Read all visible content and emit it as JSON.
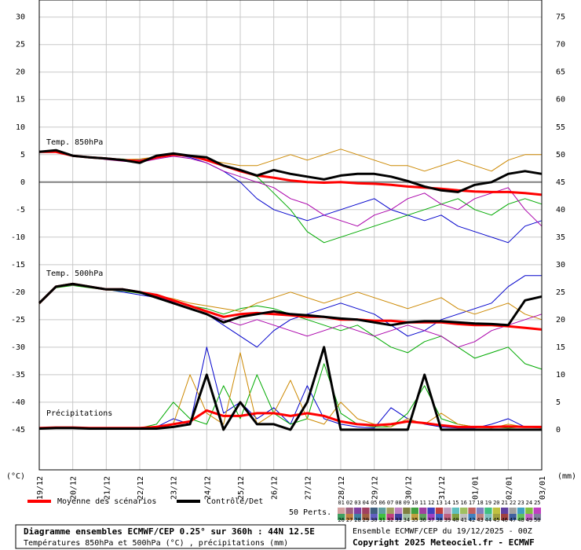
{
  "chart_data": {
    "type": "line",
    "categories": [
      "19/12",
      null,
      "20/12",
      null,
      "21/12",
      null,
      "22/12",
      null,
      "23/12",
      null,
      "24/12",
      null,
      "25/12",
      null,
      "26/12",
      null,
      "27/12",
      null,
      "28/12",
      null,
      "29/12",
      null,
      "30/12",
      null,
      "31/12",
      null,
      "01/01",
      null,
      "02/01",
      null,
      "03/01"
    ],
    "ylim": [
      -52.3,
      33.1
    ],
    "yticks": [
      -45,
      -40,
      -35,
      -30,
      -25,
      -20,
      -15,
      -10,
      -5,
      0,
      5,
      10,
      15,
      20,
      25,
      30
    ],
    "y2lim": [
      -7.3,
      78.1
    ],
    "y2ticks": [
      0,
      5,
      10,
      15,
      20,
      25,
      30,
      35,
      40,
      45,
      50,
      55,
      60,
      65,
      70,
      75
    ],
    "ylabel": "(°C)",
    "y2label": "(mm)",
    "grid": true,
    "annotations": [
      "Temp. 850hPa",
      "Temp. 500hPa",
      "Précipitations"
    ],
    "legend": [
      {
        "label": "Moyenne des scénarios",
        "color": "#ff0000"
      },
      {
        "label": "Contrôle/Det",
        "color": "#000000"
      }
    ],
    "members_label": "50 Perts.",
    "members": [
      {
        "label": "01",
        "color": "#d4a0a0"
      },
      {
        "label": "02",
        "color": "#a06080"
      },
      {
        "label": "03",
        "color": "#8040a0"
      },
      {
        "label": "04",
        "color": "#a04060"
      },
      {
        "label": "05",
        "color": "#406080"
      },
      {
        "label": "06",
        "color": "#60a0a0"
      },
      {
        "label": "07",
        "color": "#a0a060"
      },
      {
        "label": "08",
        "color": "#c080c0"
      },
      {
        "label": "09",
        "color": "#808040"
      },
      {
        "label": "10",
        "color": "#40a040"
      },
      {
        "label": "11",
        "color": "#a040a0"
      },
      {
        "label": "12",
        "color": "#4040c0"
      },
      {
        "label": "13",
        "color": "#c04040"
      },
      {
        "label": "14",
        "color": "#c0a0c0"
      },
      {
        "label": "15",
        "color": "#60c0c0"
      },
      {
        "label": "16",
        "color": "#a0c060"
      },
      {
        "label": "17",
        "color": "#c06060"
      },
      {
        "label": "18",
        "color": "#8080c0"
      },
      {
        "label": "19",
        "color": "#40c080"
      },
      {
        "label": "20",
        "color": "#c0c040"
      },
      {
        "label": "21",
        "color": "#6040a0"
      },
      {
        "label": "22",
        "color": "#a0a0a0"
      },
      {
        "label": "23",
        "color": "#40a0c0"
      },
      {
        "label": "24",
        "color": "#80c040"
      },
      {
        "label": "25",
        "color": "#c040c0"
      },
      {
        "label": "26",
        "color": "#40a060"
      },
      {
        "label": "27",
        "color": "#c08040"
      },
      {
        "label": "28",
        "color": "#4080a0"
      },
      {
        "label": "29",
        "color": "#a06040"
      },
      {
        "label": "30",
        "color": "#6060c0"
      },
      {
        "label": "31",
        "color": "#40c040"
      },
      {
        "label": "32",
        "color": "#c04080"
      },
      {
        "label": "33",
        "color": "#4040a0"
      },
      {
        "label": "34",
        "color": "#a0c0a0"
      },
      {
        "label": "35",
        "color": "#c0a040"
      },
      {
        "label": "36",
        "color": "#60a060"
      },
      {
        "label": "37",
        "color": "#a040c0"
      },
      {
        "label": "38",
        "color": "#4060c0"
      },
      {
        "label": "39",
        "color": "#c06080"
      },
      {
        "label": "40",
        "color": "#80a040"
      },
      {
        "label": "41",
        "color": "#c0c0c0"
      },
      {
        "label": "42",
        "color": "#4080c0"
      },
      {
        "label": "43",
        "color": "#c08080"
      },
      {
        "label": "44",
        "color": "#80c0c0"
      },
      {
        "label": "45",
        "color": "#a0a040"
      },
      {
        "label": "46",
        "color": "#a04040"
      },
      {
        "label": "47",
        "color": "#4060a0"
      },
      {
        "label": "48",
        "color": "#60c060"
      },
      {
        "label": "49",
        "color": "#c060c0"
      },
      {
        "label": "50",
        "color": "#8080a0"
      }
    ],
    "series": [
      {
        "color": "#0000cc",
        "width": 1,
        "values": [
          5.5,
          5.5,
          4.8,
          4.5,
          4.2,
          4,
          4,
          4.5,
          5,
          4.5,
          3.5,
          2,
          0,
          -3,
          -5,
          -6,
          -7,
          -6,
          -5,
          -4,
          -3,
          -5,
          -6,
          -7,
          -6,
          -8,
          -9,
          -10,
          -11,
          -8,
          -7
        ]
      },
      {
        "color": "#00aa00",
        "width": 1,
        "values": [
          5.4,
          5.6,
          4.9,
          4.6,
          4.3,
          4.2,
          3.9,
          4.8,
          5.1,
          4.9,
          4,
          3,
          2,
          1,
          -2,
          -5,
          -9,
          -11,
          -10,
          -9,
          -8,
          -7,
          -6,
          -5,
          -4,
          -3,
          -5,
          -6,
          -4,
          -3,
          -4
        ]
      },
      {
        "color": "#cc8800",
        "width": 1,
        "values": [
          5.5,
          5.4,
          4.7,
          4.4,
          4.4,
          4.1,
          4.2,
          4.6,
          5.3,
          4.7,
          4,
          3.5,
          3,
          3,
          4,
          5,
          4,
          5,
          6,
          5,
          4,
          3,
          3,
          2,
          3,
          4,
          3,
          2,
          4,
          5,
          5
        ]
      },
      {
        "color": "#aa00aa",
        "width": 1,
        "values": [
          5.6,
          5.5,
          4.8,
          4.5,
          4.1,
          3.8,
          3.6,
          4.2,
          4.7,
          4.3,
          3.5,
          2,
          1,
          0,
          -1,
          -3,
          -4,
          -6,
          -7,
          -8,
          -6,
          -5,
          -3,
          -2,
          -4,
          -5,
          -3,
          -2,
          -1,
          -5,
          -8
        ]
      },
      {
        "color": "#0000cc",
        "width": 1,
        "values": [
          -22,
          -19,
          -18.5,
          -19,
          -19.5,
          -20,
          -20.5,
          -21,
          -22,
          -23,
          -24,
          -26,
          -28,
          -30,
          -27,
          -25,
          -24,
          -23,
          -22,
          -23,
          -24,
          -26,
          -28,
          -27,
          -25,
          -24,
          -23,
          -22,
          -19,
          -17,
          -17
        ]
      },
      {
        "color": "#00aa00",
        "width": 1,
        "values": [
          -22,
          -19.2,
          -18.8,
          -19.2,
          -19.6,
          -19.8,
          -20.2,
          -20.8,
          -21.5,
          -22.5,
          -23,
          -24,
          -23,
          -22.5,
          -23,
          -24,
          -25,
          -26,
          -27,
          -26,
          -28,
          -30,
          -31,
          -29,
          -28,
          -30,
          -32,
          -31,
          -30,
          -33,
          -34
        ]
      },
      {
        "color": "#cc8800",
        "width": 1,
        "values": [
          -22.2,
          -19.1,
          -18.6,
          -19.1,
          -19.4,
          -19.6,
          -20.1,
          -20.6,
          -21.2,
          -22,
          -22.5,
          -23,
          -23.5,
          -22,
          -21,
          -20,
          -21,
          -22,
          -21,
          -20,
          -21,
          -22,
          -23,
          -22,
          -21,
          -23,
          -24,
          -23,
          -22,
          -24,
          -25
        ]
      },
      {
        "color": "#aa00aa",
        "width": 1,
        "values": [
          -22,
          -19,
          -18.7,
          -19,
          -19.5,
          -19.7,
          -20,
          -20.7,
          -21.8,
          -23,
          -24,
          -25,
          -26,
          -25,
          -26,
          -27,
          -28,
          -27,
          -26,
          -27,
          -28,
          -27,
          -26,
          -27,
          -28,
          -30,
          -29,
          -27,
          -26,
          -25,
          -24
        ]
      },
      {
        "color": "#0000cc",
        "width": 1,
        "axis": "y2",
        "values": [
          0.2,
          0.3,
          0.3,
          0.2,
          0.2,
          0.2,
          0.2,
          0.5,
          2,
          1,
          15,
          3,
          5,
          2,
          4,
          1,
          8,
          2,
          1,
          0.5,
          0.3,
          4,
          2,
          1,
          0.5,
          0.3,
          0.3,
          1,
          2,
          0.5,
          0.3
        ]
      },
      {
        "color": "#00aa00",
        "width": 1,
        "axis": "y2",
        "values": [
          0.3,
          0.3,
          0.2,
          0.2,
          0.2,
          0.2,
          0.3,
          1,
          5,
          2,
          1,
          8,
          2,
          10,
          3,
          1,
          2,
          12,
          3,
          1,
          0.5,
          0.5,
          3,
          8,
          2,
          1,
          0.5,
          0.5,
          0.3,
          0.5,
          0.5
        ]
      },
      {
        "color": "#cc8800",
        "width": 1,
        "axis": "y2",
        "values": [
          0.2,
          0.2,
          0.2,
          0.3,
          0.2,
          0.2,
          0.2,
          0.3,
          1,
          10,
          3,
          1,
          14,
          1,
          3,
          9,
          2,
          1,
          5,
          2,
          1,
          0.5,
          2,
          1,
          3,
          1,
          0.5,
          0.3,
          1,
          0.5,
          0.3
        ]
      },
      {
        "color": "#ff0000",
        "width": 3,
        "values": [
          5.5,
          5.5,
          4.8,
          4.5,
          4.3,
          4,
          3.8,
          4.5,
          5,
          4.8,
          4,
          3,
          2,
          1.2,
          0.8,
          0.3,
          0,
          -0.1,
          0,
          -0.2,
          -0.3,
          -0.5,
          -0.8,
          -1,
          -1.2,
          -1.5,
          -1.7,
          -1.8,
          -1.8,
          -2,
          -2.3
        ]
      },
      {
        "color": "#000000",
        "width": 3,
        "values": [
          5.5,
          5.8,
          4.8,
          4.5,
          4.3,
          4,
          3.5,
          4.8,
          5.2,
          4.8,
          4.5,
          3,
          2.2,
          1.2,
          2.2,
          1.5,
          1,
          0.5,
          1.2,
          1.5,
          1.5,
          1,
          0.2,
          -0.8,
          -1.5,
          -1.8,
          -0.5,
          0,
          1.5,
          2,
          1.5
        ]
      },
      {
        "color": "#ff0000",
        "width": 3,
        "values": [
          -22,
          -19,
          -18.5,
          -19,
          -19.5,
          -19.5,
          -20,
          -20.5,
          -21.5,
          -22.5,
          -23.5,
          -24.5,
          -24,
          -23.8,
          -24,
          -24.2,
          -24.5,
          -24.5,
          -25,
          -25,
          -25.2,
          -25.2,
          -25.5,
          -25.5,
          -25.5,
          -25.8,
          -26,
          -26,
          -26.2,
          -26.5,
          -26.8
        ]
      },
      {
        "color": "#000000",
        "width": 3,
        "values": [
          -22,
          -19,
          -18.5,
          -19,
          -19.5,
          -19.5,
          -20,
          -21,
          -22,
          -23,
          -24,
          -25.5,
          -24.5,
          -24,
          -23.5,
          -24,
          -24.2,
          -24.5,
          -24.8,
          -25,
          -25.5,
          -26,
          -25.5,
          -25.3,
          -25.3,
          -25.5,
          -25.7,
          -25.8,
          -26,
          -21.5,
          -20.8
        ]
      },
      {
        "color": "#ff0000",
        "width": 3,
        "axis": "y2",
        "values": [
          0.3,
          0.4,
          0.4,
          0.3,
          0.3,
          0.3,
          0.3,
          0.5,
          1,
          1.5,
          3.5,
          2.5,
          2.5,
          3,
          3,
          2.5,
          3,
          2.5,
          1.5,
          1,
          0.8,
          1,
          1.5,
          1.2,
          0.8,
          0.5,
          0.5,
          0.5,
          0.6,
          0.5,
          0.5
        ]
      },
      {
        "color": "#000000",
        "width": 3,
        "axis": "y2",
        "values": [
          0.2,
          0.3,
          0.3,
          0.2,
          0.2,
          0.2,
          0.2,
          0.2,
          0.5,
          1,
          10,
          0,
          5,
          1,
          1,
          0,
          5,
          15,
          0,
          0,
          0,
          0,
          0,
          10,
          0,
          0,
          0,
          0,
          0,
          0,
          0
        ]
      }
    ]
  },
  "footer": {
    "title": "Diagramme ensembles ECMWF/CEP 0.25° sur 360h : 44N 12.5E",
    "subtitle": "Températures 850hPa et 500hPa (°C) , précipitations (mm)",
    "run": "Ensemble ECMWF/CEP du 19/12/2025 - 00Z",
    "copyright": "Copyright 2025 Meteociel.fr - ECMWF"
  }
}
